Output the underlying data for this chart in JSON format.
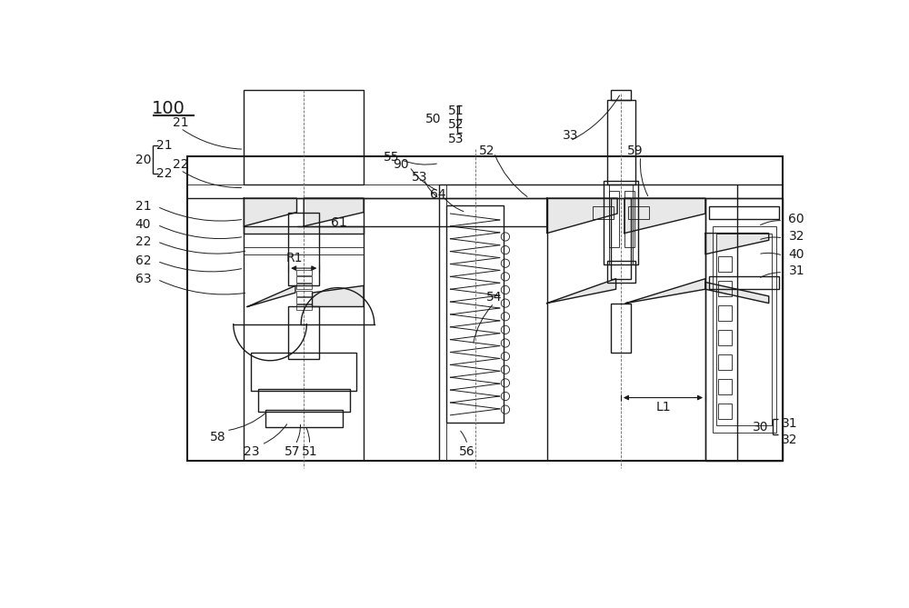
{
  "bg": "#ffffff",
  "lc": "#1a1a1a",
  "lw": 1.0,
  "lwt": 0.6,
  "lwk": 1.5,
  "fw": 10.0,
  "fh": 6.69
}
